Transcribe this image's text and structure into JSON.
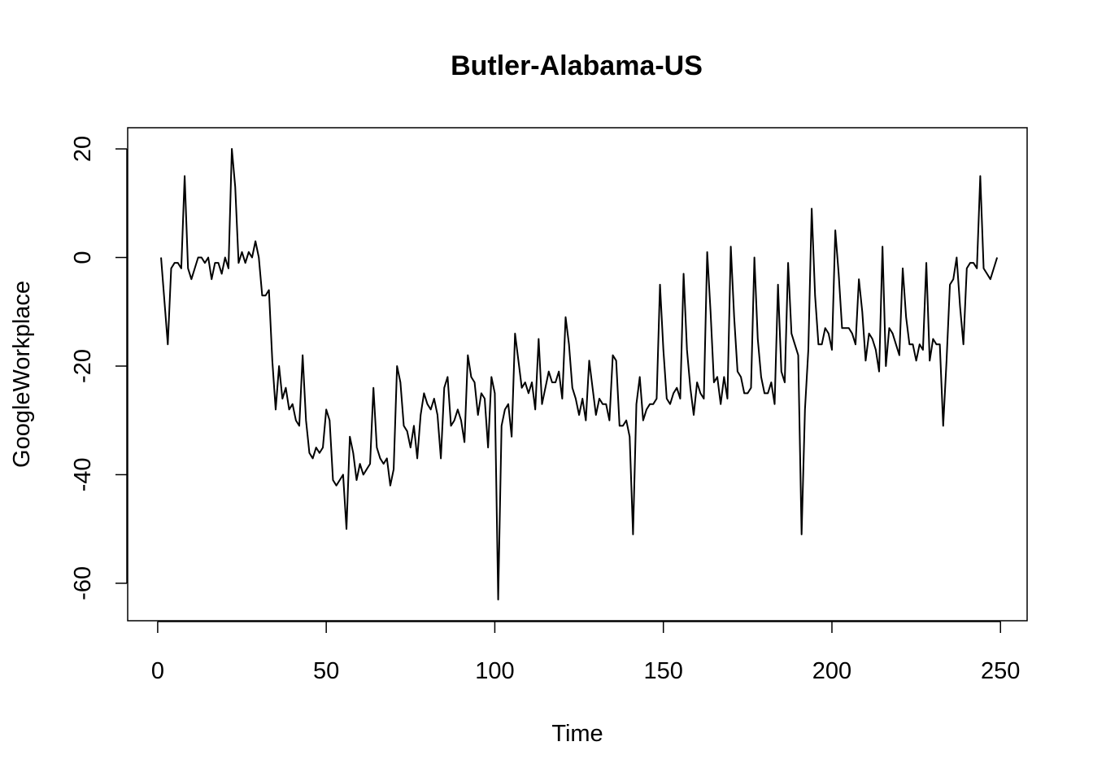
{
  "chart_data": {
    "type": "line",
    "title": "Butler-Alabama-US",
    "xlabel": "Time",
    "ylabel": "GoogleWorkplace",
    "xlim": [
      -8.9,
      257.9
    ],
    "ylim": [
      -66.9,
      23.9
    ],
    "x_ticks": [
      0,
      50,
      100,
      150,
      200,
      250
    ],
    "y_ticks": [
      -60,
      -40,
      -20,
      0,
      20
    ],
    "grid": false,
    "legend": "none",
    "line_color": "#000000",
    "series": [
      {
        "x_start": 1,
        "values": [
          0,
          -8,
          -16,
          -2,
          -1,
          -1,
          -2,
          15,
          -2,
          -4,
          -2,
          0,
          0,
          -1,
          0,
          -4,
          -1,
          -1,
          -3,
          0,
          -2,
          20,
          13,
          -1,
          1,
          -1,
          1,
          0,
          3,
          0,
          -7,
          -7,
          -6,
          -19,
          -28,
          -20,
          -26,
          -24,
          -28,
          -27,
          -30,
          -31,
          -18,
          -30,
          -36,
          -37,
          -35,
          -36,
          -35,
          -28,
          -30,
          -41,
          -42,
          -41,
          -40,
          -50,
          -33,
          -36,
          -41,
          -38,
          -40,
          -39,
          -38,
          -24,
          -35,
          -37,
          -38,
          -37,
          -42,
          -39,
          -20,
          -23,
          -31,
          -32,
          -35,
          -31,
          -37,
          -29,
          -25,
          -27,
          -28,
          -26,
          -29,
          -37,
          -24,
          -22,
          -31,
          -30,
          -28,
          -30,
          -34,
          -18,
          -22,
          -23,
          -29,
          -25,
          -26,
          -35,
          -22,
          -25,
          -63,
          -31,
          -28,
          -27,
          -33,
          -14,
          -19,
          -24,
          -23,
          -25,
          -23,
          -28,
          -15,
          -27,
          -24,
          -21,
          -23,
          -23,
          -21,
          -26,
          -11,
          -16,
          -24,
          -26,
          -29,
          -26,
          -30,
          -19,
          -24,
          -29,
          -26,
          -27,
          -27,
          -30,
          -18,
          -19,
          -31,
          -31,
          -30,
          -33,
          -51,
          -27,
          -22,
          -30,
          -28,
          -27,
          -27,
          -26,
          -5,
          -17,
          -26,
          -27,
          -25,
          -24,
          -26,
          -3,
          -17,
          -24,
          -29,
          -23,
          -25,
          -26,
          1,
          -10,
          -23,
          -22,
          -27,
          -22,
          -26,
          2,
          -11,
          -21,
          -22,
          -25,
          -25,
          -24,
          0,
          -15,
          -22,
          -25,
          -25,
          -23,
          -27,
          -5,
          -21,
          -23,
          -1,
          -14,
          -16,
          -18,
          -51,
          -28,
          -17,
          9,
          -7,
          -16,
          -16,
          -13,
          -14,
          -17,
          5,
          -3,
          -13,
          -13,
          -13,
          -14,
          -16,
          -4,
          -10,
          -19,
          -14,
          -15,
          -17,
          -21,
          2,
          -20,
          -13,
          -14,
          -16,
          -18,
          -2,
          -11,
          -16,
          -16,
          -19,
          -16,
          -17,
          -1,
          -19,
          -15,
          -16,
          -16,
          -31,
          -19,
          -5,
          -4,
          0,
          -9,
          -16,
          -2,
          -1,
          -1,
          -2,
          15,
          -2,
          -3,
          -4,
          -2,
          0
        ]
      }
    ]
  }
}
